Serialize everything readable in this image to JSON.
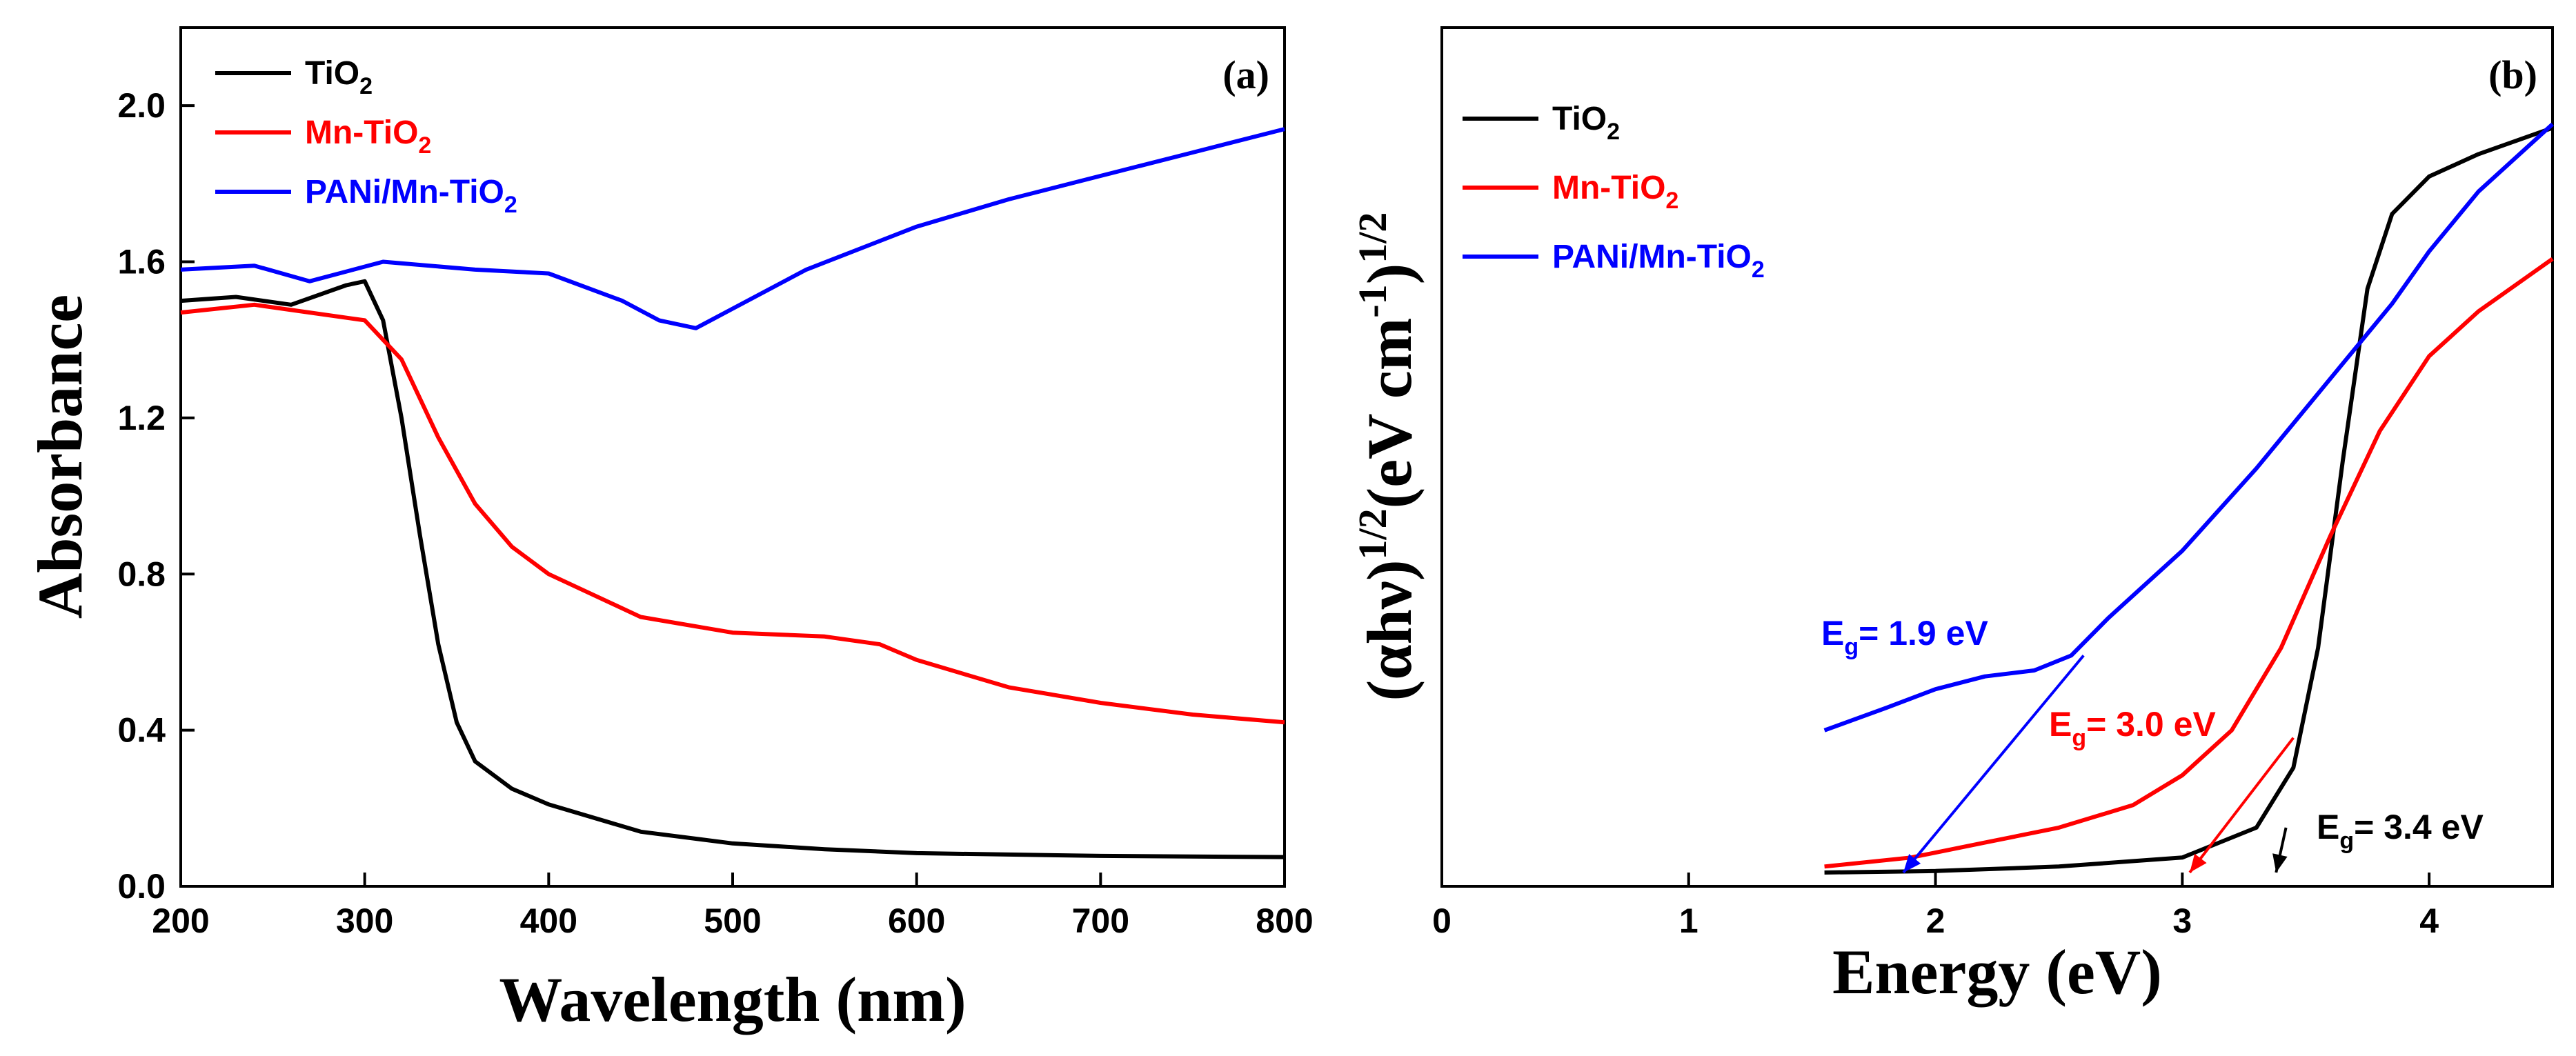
{
  "chart_data": [
    {
      "type": "line",
      "panel_label": "(a)",
      "xlabel": "Wavelength (nm)",
      "ylabel": "Absorbance",
      "xlim": [
        200,
        800
      ],
      "ylim": [
        0.0,
        2.2
      ],
      "x_ticks": [
        "200",
        "300",
        "400",
        "500",
        "600",
        "700",
        "800"
      ],
      "y_ticks": [
        "0.0",
        "0.4",
        "0.8",
        "1.2",
        "1.6",
        "2.0"
      ],
      "legend_position": "top-left",
      "series": [
        {
          "name": "TiO2",
          "label_main": "TiO",
          "label_sub": "2",
          "color": "#000000",
          "x": [
            200,
            230,
            260,
            290,
            300,
            310,
            320,
            330,
            340,
            350,
            360,
            380,
            400,
            450,
            500,
            550,
            600,
            700,
            800
          ],
          "y": [
            1.5,
            1.51,
            1.49,
            1.54,
            1.55,
            1.45,
            1.2,
            0.9,
            0.62,
            0.42,
            0.32,
            0.25,
            0.21,
            0.14,
            0.11,
            0.095,
            0.085,
            0.078,
            0.075
          ]
        },
        {
          "name": "Mn-TiO2",
          "label_main": "Mn-TiO",
          "label_sub": "2",
          "color": "#ff0000",
          "x": [
            200,
            240,
            270,
            300,
            320,
            340,
            360,
            380,
            400,
            450,
            500,
            550,
            580,
            600,
            650,
            700,
            750,
            800
          ],
          "y": [
            1.47,
            1.49,
            1.47,
            1.45,
            1.35,
            1.15,
            0.98,
            0.87,
            0.8,
            0.69,
            0.65,
            0.64,
            0.62,
            0.58,
            0.51,
            0.47,
            0.44,
            0.42
          ]
        },
        {
          "name": "PANi/Mn-TiO2",
          "label_main": "PANi/Mn-TiO",
          "label_sub": "2",
          "color": "#0000ff",
          "x": [
            200,
            240,
            270,
            310,
            360,
            400,
            440,
            460,
            480,
            500,
            540,
            600,
            650,
            700,
            750,
            800
          ],
          "y": [
            1.58,
            1.59,
            1.55,
            1.6,
            1.58,
            1.57,
            1.5,
            1.45,
            1.43,
            1.48,
            1.58,
            1.69,
            1.76,
            1.82,
            1.88,
            1.94
          ]
        }
      ]
    },
    {
      "type": "line",
      "panel_label": "(b)",
      "xlabel": "Energy (eV)",
      "ylabel": "(αhν)^1/2(eV cm^-1)^1/2",
      "ylabel_parts": {
        "a": "(αhν)",
        "b": "1/2",
        "c": "(eV cm",
        "d": "-1",
        "e": ")",
        "f": "1/2"
      },
      "xlim": [
        0,
        4.5
      ],
      "ylim": [
        0,
        1.0
      ],
      "x_ticks": [
        "0",
        "1",
        "2",
        "3",
        "4"
      ],
      "legend_position": "top-left",
      "series": [
        {
          "name": "TiO2",
          "label_main": "TiO",
          "label_sub": "2",
          "color": "#000000",
          "x": [
            1.55,
            2.0,
            2.5,
            3.0,
            3.3,
            3.45,
            3.55,
            3.65,
            3.75,
            3.85,
            4.0,
            4.2,
            4.5
          ],
          "y": [
            0.0,
            0.002,
            0.008,
            0.02,
            0.06,
            0.14,
            0.3,
            0.55,
            0.78,
            0.88,
            0.93,
            0.96,
            0.995
          ]
        },
        {
          "name": "Mn-TiO2",
          "label_main": "Mn-TiO",
          "label_sub": "2",
          "color": "#ff0000",
          "x": [
            1.55,
            1.9,
            2.2,
            2.5,
            2.8,
            3.0,
            3.2,
            3.4,
            3.6,
            3.8,
            4.0,
            4.2,
            4.5
          ],
          "y": [
            0.008,
            0.02,
            0.04,
            0.06,
            0.09,
            0.13,
            0.19,
            0.3,
            0.45,
            0.59,
            0.69,
            0.75,
            0.82
          ]
        },
        {
          "name": "PANi/Mn-TiO2",
          "label_main": "PANi/Mn-TiO",
          "label_sub": "2",
          "color": "#0000ff",
          "x": [
            1.55,
            1.8,
            2.0,
            2.2,
            2.4,
            2.55,
            2.7,
            3.0,
            3.3,
            3.6,
            3.85,
            4.0,
            4.2,
            4.5
          ],
          "y": [
            0.19,
            0.22,
            0.245,
            0.262,
            0.27,
            0.29,
            0.34,
            0.43,
            0.54,
            0.66,
            0.76,
            0.83,
            0.91,
            1.0
          ]
        }
      ],
      "annotations": [
        {
          "main": "E",
          "sub": "g",
          "rest": "= 1.9 eV",
          "color": "#0000ff",
          "eg": 1.87
        },
        {
          "main": "E",
          "sub": "g",
          "rest": "= 3.0 eV",
          "color": "#ff0000",
          "eg": 3.03
        },
        {
          "main": "E",
          "sub": "g",
          "rest": "= 3.4 eV",
          "color": "#000000",
          "eg": 3.38
        }
      ]
    }
  ]
}
